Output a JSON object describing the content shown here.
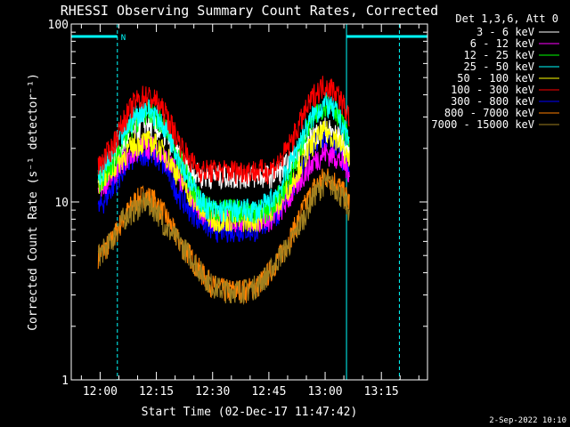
{
  "chart_data": {
    "type": "line",
    "title": "RHESSI Observing Summary Count Rates, Corrected",
    "xlabel": "Start Time (02-Dec-17 11:47:42)",
    "ylabel": "Corrected Count Rate (s⁻¹ detector⁻¹)",
    "y_scale": "log",
    "ylim": [
      1,
      100
    ],
    "y_ticks": [
      {
        "value": 1,
        "label": "1"
      },
      {
        "value": 10,
        "label": "10"
      },
      {
        "value": 100,
        "label": "100"
      }
    ],
    "xlim_min": [
      -7.7,
      87.3
    ],
    "x_ticks": [
      {
        "value": 0,
        "label": "12:00"
      },
      {
        "value": 15,
        "label": "12:15"
      },
      {
        "value": 30,
        "label": "12:30"
      },
      {
        "value": 45,
        "label": "12:45"
      },
      {
        "value": 60,
        "label": "13:00"
      },
      {
        "value": 75,
        "label": "13:15"
      }
    ],
    "grid": false,
    "legend_position": "top-right outside",
    "legend_header": "Det 1,3,6, Att 0",
    "timestamp": "2-Sep-2022 10:10",
    "annotations": {
      "night_label": "N",
      "night_intervals": [
        [
          -7.7,
          4.6
        ],
        [
          65.7,
          87.3
        ]
      ],
      "dashed_boundaries": [
        4.6,
        79.8
      ],
      "solid_boundaries": [
        -7.7,
        65.7
      ]
    },
    "time_grid_min": [
      -0.5,
      3,
      6,
      9,
      12,
      15,
      18,
      21,
      24,
      27,
      30,
      33,
      36,
      39,
      42,
      45,
      48,
      51,
      54,
      57,
      60,
      63,
      66.5
    ],
    "series": [
      {
        "name": "3 - 6 keV",
        "color": "#ffffff",
        "values": [
          14,
          17,
          21,
          25,
          28,
          26,
          23,
          18,
          15,
          14,
          14,
          14,
          14,
          14,
          14,
          14,
          15,
          17,
          20,
          24,
          26,
          24,
          19
        ]
      },
      {
        "name": "6 - 12 keV",
        "color": "#ff00ff",
        "values": [
          12,
          14,
          17,
          19,
          21,
          20,
          17,
          14,
          11,
          9,
          8,
          8,
          8,
          8,
          8,
          8,
          9,
          11,
          14,
          17,
          19,
          18,
          15
        ]
      },
      {
        "name": "12 - 25 keV",
        "color": "#00ff00",
        "values": [
          13,
          16,
          22,
          28,
          32,
          30,
          25,
          18,
          13,
          10,
          9,
          9,
          9,
          9,
          9,
          9,
          11,
          15,
          22,
          30,
          36,
          33,
          22
        ]
      },
      {
        "name": "25 - 50 keV",
        "color": "#00ffff",
        "values": [
          14,
          18,
          24,
          30,
          34,
          31,
          25,
          18,
          13,
          10,
          9,
          9,
          9,
          9,
          9,
          10,
          12,
          17,
          24,
          31,
          36,
          32,
          22
        ]
      },
      {
        "name": "50 - 100 keV",
        "color": "#ffff00",
        "values": [
          13,
          15,
          18,
          21,
          22,
          21,
          18,
          14,
          11,
          9,
          8,
          8,
          8,
          8,
          8,
          9,
          10,
          13,
          17,
          22,
          25,
          23,
          17
        ]
      },
      {
        "name": "100 - 300 keV",
        "color": "#ff0000",
        "values": [
          16,
          20,
          28,
          36,
          40,
          37,
          30,
          22,
          17,
          15,
          15,
          15,
          15,
          15,
          15,
          15,
          17,
          22,
          30,
          40,
          46,
          42,
          30
        ]
      },
      {
        "name": "300 - 800 keV",
        "color": "#0000ff",
        "values": [
          9,
          12,
          15,
          18,
          19,
          18,
          15,
          11,
          9,
          8,
          7,
          7,
          7,
          7,
          7,
          8,
          9,
          12,
          16,
          21,
          23,
          21,
          14
        ]
      },
      {
        "name": "800 - 7000 keV",
        "color": "#ff8000",
        "values": [
          5,
          6,
          8,
          10,
          11,
          10,
          8,
          6,
          5,
          4,
          3.4,
          3.2,
          3.2,
          3.2,
          3.4,
          4,
          5,
          6.5,
          9,
          12,
          14,
          13,
          10
        ]
      },
      {
        "name": "7000 - 15000 keV",
        "color": "#a08020",
        "values": [
          5,
          6,
          8,
          9,
          10,
          9,
          7,
          6,
          5,
          4,
          3.4,
          3.2,
          3.2,
          3.2,
          3.4,
          4,
          5,
          6,
          8,
          11,
          13,
          12,
          9
        ]
      }
    ]
  }
}
